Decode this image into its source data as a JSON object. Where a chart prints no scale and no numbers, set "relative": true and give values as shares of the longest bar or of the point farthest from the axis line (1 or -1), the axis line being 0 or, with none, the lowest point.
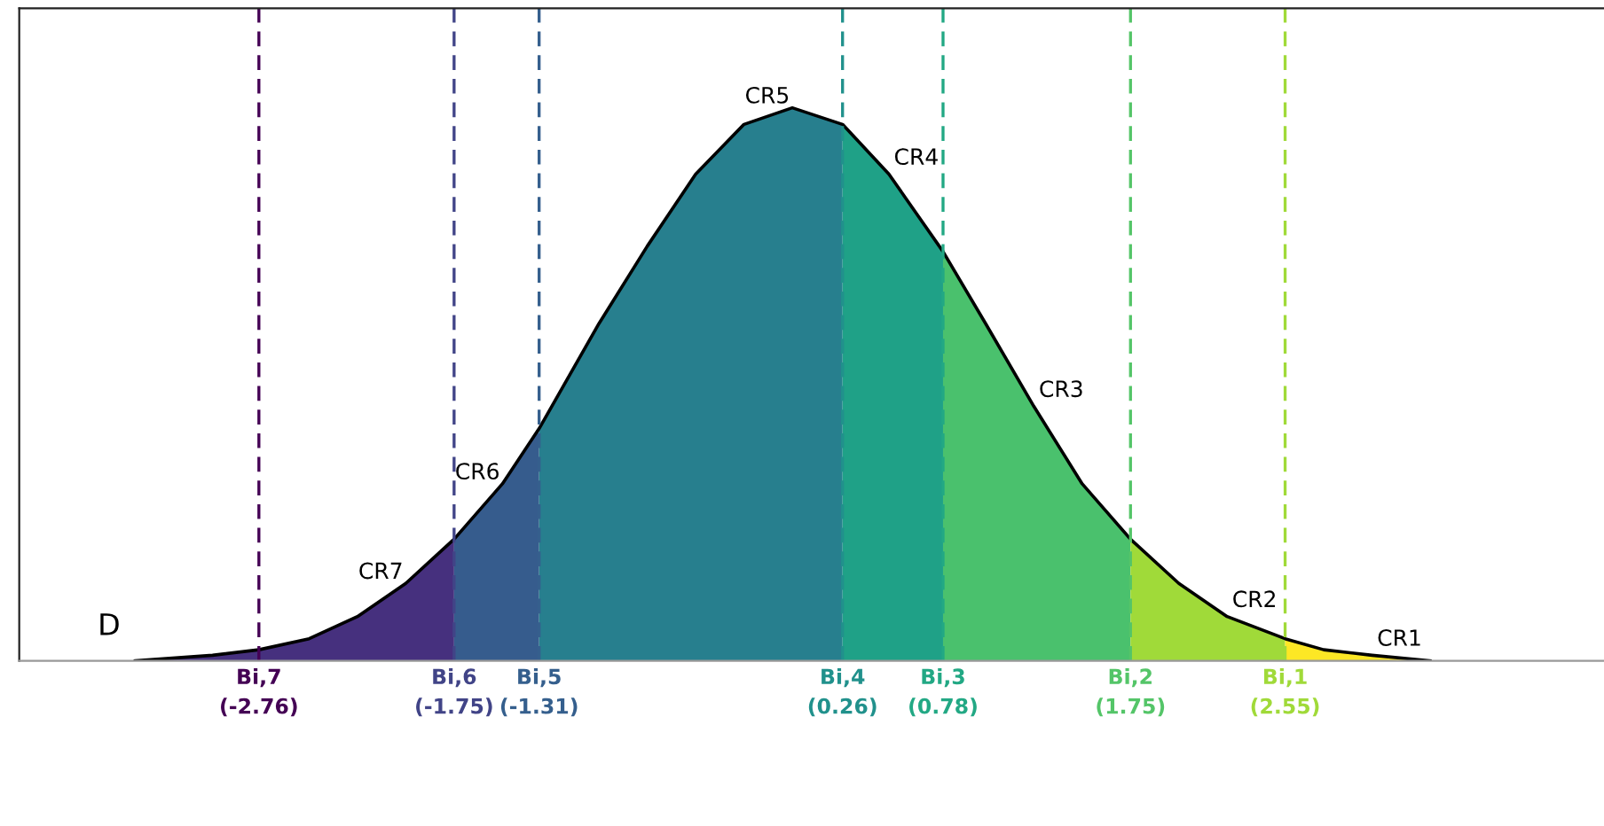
{
  "chart_data": {
    "type": "area",
    "relative": true,
    "xlim": [
      -4,
      4.2
    ],
    "xticks": [
      {
        "value": -2.76,
        "label": "(-2.76)"
      },
      {
        "value": -1.75,
        "label": "(-1.75)"
      },
      {
        "value": -1.31,
        "label": "(-1.31)"
      },
      {
        "value": 0.26,
        "label": "(0.26)"
      },
      {
        "value": 0.78,
        "label": "(0.78)"
      },
      {
        "value": 1.75,
        "label": "(1.75)"
      },
      {
        "value": 2.55,
        "label": "(2.55)"
      }
    ],
    "series": [
      {
        "name": "CR7",
        "color": "#46307e",
        "x": [
          -3.4,
          -3,
          -2.76,
          -2.5,
          -2.25,
          -2,
          -1.75
        ],
        "values": [
          0,
          0.01,
          0.02,
          0.04,
          0.08,
          0.14,
          0.22
        ]
      },
      {
        "name": "CR6",
        "color": "#365c8d",
        "x": [
          -1.75,
          -1.5,
          -1.31
        ],
        "values": [
          0.22,
          0.32,
          0.42
        ]
      },
      {
        "name": "CR5",
        "color": "#277f8e",
        "x": [
          -1.31,
          -1,
          -0.75,
          -0.5,
          -0.25,
          0,
          0.26
        ],
        "values": [
          0.42,
          0.61,
          0.75,
          0.88,
          0.97,
          1,
          0.97
        ]
      },
      {
        "name": "CR4",
        "color": "#1fa187",
        "x": [
          0.26,
          0.5,
          0.78
        ],
        "values": [
          0.97,
          0.88,
          0.74
        ]
      },
      {
        "name": "CR3",
        "color": "#4ac16d",
        "x": [
          0.78,
          1,
          1.25,
          1.5,
          1.75
        ],
        "values": [
          0.74,
          0.61,
          0.46,
          0.32,
          0.22
        ]
      },
      {
        "name": "CR2",
        "color": "#a0da39",
        "x": [
          1.75,
          2,
          2.25,
          2.55
        ],
        "values": [
          0.22,
          0.14,
          0.08,
          0.04
        ]
      },
      {
        "name": "CR1",
        "color": "#fde725",
        "x": [
          2.55,
          2.75,
          3,
          3.3
        ],
        "values": [
          0.04,
          0.02,
          0.01,
          0
        ]
      },
      {
        "type": "line",
        "color": "#000000",
        "x": [
          -3.4,
          -3,
          -2.76,
          -2.5,
          -2.25,
          -2,
          -1.75,
          -1.5,
          -1.31,
          -1,
          -0.75,
          -0.5,
          -0.25,
          0,
          0.26,
          0.5,
          0.78,
          1,
          1.25,
          1.5,
          1.75,
          2,
          2.25,
          2.55,
          2.75,
          3,
          3.3
        ],
        "values": [
          0,
          0.01,
          0.02,
          0.04,
          0.08,
          0.14,
          0.22,
          0.32,
          0.42,
          0.61,
          0.75,
          0.88,
          0.97,
          1,
          0.97,
          0.88,
          0.74,
          0.61,
          0.46,
          0.32,
          0.22,
          0.14,
          0.08,
          0.04,
          0.02,
          0.01,
          0
        ]
      }
    ],
    "ref_lines": [
      {
        "axis": "x",
        "value": -2.76,
        "label": "Bi,7",
        "color": "#440154",
        "line_style": "dashed"
      },
      {
        "axis": "x",
        "value": -1.75,
        "label": "Bi,6",
        "color": "#414487",
        "line_style": "dashed"
      },
      {
        "axis": "x",
        "value": -1.31,
        "label": "Bi,5",
        "color": "#355f8d",
        "line_style": "dashed"
      },
      {
        "axis": "x",
        "value": 0.26,
        "label": "Bi,4",
        "color": "#21918c",
        "line_style": "dashed"
      },
      {
        "axis": "x",
        "value": 0.78,
        "label": "Bi,3",
        "color": "#22a884",
        "line_style": "dashed"
      },
      {
        "axis": "x",
        "value": 1.75,
        "label": "Bi,2",
        "color": "#54c568",
        "line_style": "dashed"
      },
      {
        "axis": "x",
        "value": 2.55,
        "label": "Bi,1",
        "color": "#a0da39",
        "line_style": "dashed"
      }
    ],
    "annotations": [
      "D"
    ]
  }
}
